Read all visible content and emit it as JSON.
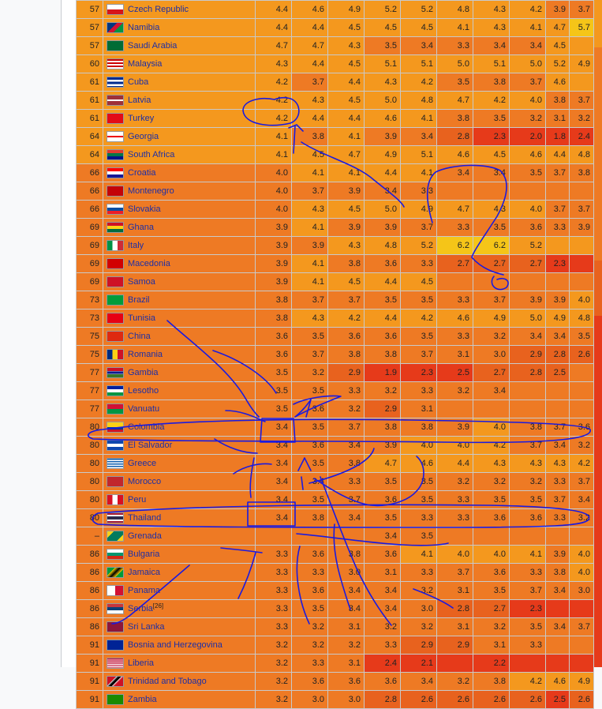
{
  "colors": {
    "c0": "#f4981e",
    "c1": "#ee7a24",
    "c2": "#e8621e",
    "c3": "#e63a1a",
    "c4": "#f5c518"
  },
  "rows": [
    {
      "rank": "57",
      "country": "Czech Republic",
      "flag": "flag-czech-republic",
      "bg": "c0",
      "values": [
        "4.4",
        "4.6",
        "4.9",
        "5.2",
        "5.2",
        "4.8",
        "4.3",
        "4.2",
        "3.9",
        "3.7"
      ],
      "shades": [
        "c0",
        "c0",
        "c0",
        "c0",
        "c0",
        "c0",
        "c0",
        "c0",
        "c1",
        "c1"
      ]
    },
    {
      "rank": "57",
      "country": "Namibia",
      "flag": "flag-namibia",
      "bg": "c0",
      "values": [
        "4.4",
        "4.4",
        "4.5",
        "4.5",
        "4.5",
        "4.1",
        "4.3",
        "4.1",
        "4.7",
        "5.7"
      ],
      "shades": [
        "c0",
        "c0",
        "c0",
        "c0",
        "c0",
        "c0",
        "c0",
        "c0",
        "c0",
        "c4"
      ]
    },
    {
      "rank": "57",
      "country": "Saudi Arabia",
      "flag": "flag-saudi-arabia",
      "bg": "c0",
      "values": [
        "4.7",
        "4.7",
        "4.3",
        "3.5",
        "3.4",
        "3.3",
        "3.4",
        "3.4",
        "4.5",
        ""
      ],
      "shades": [
        "c0",
        "c0",
        "c0",
        "c1",
        "c1",
        "c1",
        "c1",
        "c1",
        "c0",
        "c0"
      ]
    },
    {
      "rank": "60",
      "country": "Malaysia",
      "flag": "flag-malaysia",
      "bg": "c0",
      "values": [
        "4.3",
        "4.4",
        "4.5",
        "5.1",
        "5.1",
        "5.0",
        "5.1",
        "5.0",
        "5.2",
        "4.9"
      ],
      "shades": [
        "c0",
        "c0",
        "c0",
        "c0",
        "c0",
        "c0",
        "c0",
        "c0",
        "c0",
        "c0"
      ]
    },
    {
      "rank": "61",
      "country": "Cuba",
      "flag": "flag-cuba",
      "bg": "c0",
      "values": [
        "4.2",
        "3.7",
        "4.4",
        "4.3",
        "4.2",
        "3.5",
        "3.8",
        "3.7",
        "4.6",
        ""
      ],
      "shades": [
        "c0",
        "c1",
        "c0",
        "c0",
        "c0",
        "c1",
        "c1",
        "c1",
        "c0",
        "c0"
      ]
    },
    {
      "rank": "61",
      "country": "Latvia",
      "flag": "flag-latvia",
      "bg": "c0",
      "values": [
        "4.2",
        "4.3",
        "4.5",
        "5.0",
        "4.8",
        "4.7",
        "4.2",
        "4.0",
        "3.8",
        "3.7"
      ],
      "shades": [
        "c0",
        "c0",
        "c0",
        "c0",
        "c0",
        "c0",
        "c0",
        "c0",
        "c1",
        "c1"
      ]
    },
    {
      "rank": "61",
      "country": "Turkey",
      "flag": "flag-turkey",
      "bg": "c0",
      "values": [
        "4.2",
        "4.4",
        "4.4",
        "4.6",
        "4.1",
        "3.8",
        "3.5",
        "3.2",
        "3.1",
        "3.2"
      ],
      "shades": [
        "c0",
        "c0",
        "c0",
        "c0",
        "c0",
        "c1",
        "c1",
        "c1",
        "c1",
        "c1"
      ]
    },
    {
      "rank": "64",
      "country": "Georgia",
      "flag": "flag-georgia",
      "bg": "c0",
      "values": [
        "4.1",
        "3.8",
        "4.1",
        "3.9",
        "3.4",
        "2.8",
        "2.3",
        "2.0",
        "1.8",
        "2.4"
      ],
      "shades": [
        "c0",
        "c1",
        "c0",
        "c1",
        "c1",
        "c2",
        "c3",
        "c3",
        "c3",
        "c3"
      ]
    },
    {
      "rank": "64",
      "country": "South Africa",
      "flag": "flag-south-africa",
      "bg": "c0",
      "values": [
        "4.1",
        "4.5",
        "4.7",
        "4.9",
        "5.1",
        "4.6",
        "4.5",
        "4.6",
        "4.4",
        "4.8"
      ],
      "shades": [
        "c0",
        "c0",
        "c0",
        "c0",
        "c0",
        "c0",
        "c0",
        "c0",
        "c0",
        "c0"
      ]
    },
    {
      "rank": "66",
      "country": "Croatia",
      "flag": "flag-croatia",
      "bg": "c1",
      "values": [
        "4.0",
        "4.1",
        "4.1",
        "4.4",
        "4.1",
        "3.4",
        "3.4",
        "3.5",
        "3.7",
        "3.8"
      ],
      "shades": [
        "c1",
        "c0",
        "c0",
        "c0",
        "c0",
        "c1",
        "c1",
        "c1",
        "c1",
        "c1"
      ]
    },
    {
      "rank": "66",
      "country": "Montenegro",
      "flag": "flag-montenegro",
      "bg": "c1",
      "values": [
        "4.0",
        "3.7",
        "3.9",
        "3.4",
        "3.3",
        "",
        "",
        "",
        "",
        ""
      ],
      "shades": [
        "c1",
        "c1",
        "c1",
        "c1",
        "c1",
        "c1",
        "c1",
        "c1",
        "c1",
        "c1"
      ]
    },
    {
      "rank": "66",
      "country": "Slovakia",
      "flag": "flag-slovakia",
      "bg": "c1",
      "values": [
        "4.0",
        "4.3",
        "4.5",
        "5.0",
        "4.9",
        "4.7",
        "4.3",
        "4.0",
        "3.7",
        "3.7"
      ],
      "shades": [
        "c1",
        "c0",
        "c0",
        "c0",
        "c0",
        "c0",
        "c0",
        "c0",
        "c1",
        "c1"
      ]
    },
    {
      "rank": "69",
      "country": "Ghana",
      "flag": "flag-ghana",
      "bg": "c1",
      "values": [
        "3.9",
        "4.1",
        "3.9",
        "3.9",
        "3.7",
        "3.3",
        "3.5",
        "3.6",
        "3.3",
        "3.9"
      ],
      "shades": [
        "c1",
        "c0",
        "c1",
        "c1",
        "c1",
        "c1",
        "c1",
        "c1",
        "c1",
        "c1"
      ]
    },
    {
      "rank": "69",
      "country": "Italy",
      "flag": "flag-italy",
      "bg": "c1",
      "values": [
        "3.9",
        "3.9",
        "4.3",
        "4.8",
        "5.2",
        "6.2",
        "6.2",
        "5.2",
        "",
        ""
      ],
      "shades": [
        "c1",
        "c1",
        "c0",
        "c0",
        "c0",
        "c4",
        "c4",
        "c0",
        "c0",
        "c0"
      ]
    },
    {
      "rank": "69",
      "country": "Macedonia",
      "flag": "flag-macedonia",
      "bg": "c1",
      "values": [
        "3.9",
        "4.1",
        "3.8",
        "3.6",
        "3.3",
        "2.7",
        "2.7",
        "2.7",
        "2.3",
        ""
      ],
      "shades": [
        "c1",
        "c0",
        "c1",
        "c1",
        "c1",
        "c2",
        "c2",
        "c2",
        "c3",
        "c3"
      ]
    },
    {
      "rank": "69",
      "country": "Samoa",
      "flag": "flag-samoa",
      "bg": "c1",
      "values": [
        "3.9",
        "4.1",
        "4.5",
        "4.4",
        "4.5",
        "",
        "",
        "",
        "",
        ""
      ],
      "shades": [
        "c1",
        "c0",
        "c0",
        "c0",
        "c0",
        "c1",
        "c1",
        "c1",
        "c1",
        "c1"
      ]
    },
    {
      "rank": "73",
      "country": "Brazil",
      "flag": "flag-brazil",
      "bg": "c1",
      "values": [
        "3.8",
        "3.7",
        "3.7",
        "3.5",
        "3.5",
        "3.3",
        "3.7",
        "3.9",
        "3.9",
        "4.0"
      ],
      "shades": [
        "c1",
        "c1",
        "c1",
        "c1",
        "c1",
        "c1",
        "c1",
        "c1",
        "c1",
        "c0"
      ]
    },
    {
      "rank": "73",
      "country": "Tunisia",
      "flag": "flag-tunisia",
      "bg": "c1",
      "values": [
        "3.8",
        "4.3",
        "4.2",
        "4.4",
        "4.2",
        "4.6",
        "4.9",
        "5.0",
        "4.9",
        "4.8"
      ],
      "shades": [
        "c1",
        "c0",
        "c0",
        "c0",
        "c0",
        "c0",
        "c0",
        "c0",
        "c0",
        "c0"
      ]
    },
    {
      "rank": "75",
      "country": "China",
      "flag": "flag-china",
      "bg": "c1",
      "values": [
        "3.6",
        "3.5",
        "3.6",
        "3.6",
        "3.5",
        "3.3",
        "3.2",
        "3.4",
        "3.4",
        "3.5"
      ],
      "shades": [
        "c1",
        "c1",
        "c1",
        "c1",
        "c1",
        "c1",
        "c1",
        "c1",
        "c1",
        "c1"
      ]
    },
    {
      "rank": "75",
      "country": "Romania",
      "flag": "flag-romania",
      "bg": "c1",
      "values": [
        "3.6",
        "3.7",
        "3.8",
        "3.8",
        "3.7",
        "3.1",
        "3.0",
        "2.9",
        "2.8",
        "2.6"
      ],
      "shades": [
        "c1",
        "c1",
        "c1",
        "c1",
        "c1",
        "c1",
        "c1",
        "c2",
        "c2",
        "c2"
      ]
    },
    {
      "rank": "77",
      "country": "Gambia",
      "flag": "flag-gambia",
      "bg": "c1",
      "values": [
        "3.5",
        "3.2",
        "2.9",
        "1.9",
        "2.3",
        "2.5",
        "2.7",
        "2.8",
        "2.5",
        ""
      ],
      "shades": [
        "c1",
        "c1",
        "c2",
        "c3",
        "c3",
        "c3",
        "c2",
        "c2",
        "c2",
        "c1"
      ]
    },
    {
      "rank": "77",
      "country": "Lesotho",
      "flag": "flag-lesotho",
      "bg": "c1",
      "values": [
        "3.5",
        "3.5",
        "3.3",
        "3.2",
        "3.3",
        "3.2",
        "3.4",
        "",
        "",
        ""
      ],
      "shades": [
        "c1",
        "c1",
        "c1",
        "c1",
        "c1",
        "c1",
        "c1",
        "c1",
        "c1",
        "c1"
      ]
    },
    {
      "rank": "77",
      "country": "Vanuatu",
      "flag": "flag-vanuatu",
      "bg": "c1",
      "values": [
        "3.5",
        "3.6",
        "3.2",
        "2.9",
        "3.1",
        "",
        "",
        "",
        "",
        ""
      ],
      "shades": [
        "c1",
        "c1",
        "c1",
        "c2",
        "c1",
        "c1",
        "c1",
        "c1",
        "c1",
        "c1"
      ]
    },
    {
      "rank": "80",
      "country": "Colombia",
      "flag": "flag-colombia",
      "bg": "c1",
      "values": [
        "3.4",
        "3.5",
        "3.7",
        "3.8",
        "3.8",
        "3.9",
        "4.0",
        "3.8",
        "3.7",
        "3.6"
      ],
      "shades": [
        "c1",
        "c1",
        "c1",
        "c1",
        "c1",
        "c1",
        "c0",
        "c1",
        "c1",
        "c1"
      ]
    },
    {
      "rank": "80",
      "country": "El Salvador",
      "flag": "flag-el-salvador",
      "bg": "c1",
      "values": [
        "3.4",
        "3.6",
        "3.4",
        "3.9",
        "4.0",
        "4.0",
        "4.2",
        "3.7",
        "3.4",
        "3.2"
      ],
      "shades": [
        "c1",
        "c1",
        "c1",
        "c1",
        "c0",
        "c0",
        "c0",
        "c1",
        "c1",
        "c1"
      ]
    },
    {
      "rank": "80",
      "country": "Greece",
      "flag": "flag-greece",
      "bg": "c1",
      "values": [
        "3.4",
        "3.5",
        "3.8",
        "4.7",
        "4.6",
        "4.4",
        "4.3",
        "4.3",
        "4.3",
        "4.2"
      ],
      "shades": [
        "c1",
        "c1",
        "c1",
        "c0",
        "c0",
        "c0",
        "c0",
        "c0",
        "c0",
        "c0"
      ]
    },
    {
      "rank": "80",
      "country": "Morocco",
      "flag": "flag-morocco",
      "bg": "c1",
      "values": [
        "3.4",
        "3.4",
        "3.3",
        "3.5",
        "3.5",
        "3.2",
        "3.2",
        "3.2",
        "3.3",
        "3.7"
      ],
      "shades": [
        "c1",
        "c1",
        "c1",
        "c1",
        "c1",
        "c1",
        "c1",
        "c1",
        "c1",
        "c1"
      ]
    },
    {
      "rank": "80",
      "country": "Peru",
      "flag": "flag-peru",
      "bg": "c1",
      "values": [
        "3.4",
        "3.5",
        "3.7",
        "3.6",
        "3.5",
        "3.3",
        "3.5",
        "3.5",
        "3.7",
        "3.4"
      ],
      "shades": [
        "c1",
        "c1",
        "c1",
        "c1",
        "c1",
        "c1",
        "c1",
        "c1",
        "c1",
        "c1"
      ]
    },
    {
      "rank": "80",
      "country": "Thailand",
      "flag": "flag-thailand",
      "bg": "c1",
      "values": [
        "3.4",
        "3.8",
        "3.4",
        "3.5",
        "3.3",
        "3.3",
        "3.6",
        "3.6",
        "3.3",
        "3.2"
      ],
      "shades": [
        "c1",
        "c1",
        "c1",
        "c1",
        "c1",
        "c1",
        "c1",
        "c1",
        "c1",
        "c1"
      ]
    },
    {
      "rank": "–",
      "country": "Grenada",
      "flag": "flag-grenada",
      "bg": "c1",
      "values": [
        "",
        "",
        "",
        "3.4",
        "3.5",
        "",
        "",
        "",
        "",
        ""
      ],
      "shades": [
        "c1",
        "c1",
        "c1",
        "c1",
        "c1",
        "c1",
        "c1",
        "c1",
        "c1",
        "c1"
      ]
    },
    {
      "rank": "86",
      "country": "Bulgaria",
      "flag": "flag-bulgaria",
      "bg": "c1",
      "values": [
        "3.3",
        "3.6",
        "3.8",
        "3.6",
        "4.1",
        "4.0",
        "4.0",
        "4.1",
        "3.9",
        "4.0"
      ],
      "shades": [
        "c1",
        "c1",
        "c1",
        "c1",
        "c0",
        "c0",
        "c0",
        "c0",
        "c1",
        "c0"
      ]
    },
    {
      "rank": "86",
      "country": "Jamaica",
      "flag": "flag-jamaica",
      "bg": "c1",
      "values": [
        "3.3",
        "3.3",
        "3.0",
        "3.1",
        "3.3",
        "3.7",
        "3.6",
        "3.3",
        "3.8",
        "4.0"
      ],
      "shades": [
        "c1",
        "c1",
        "c1",
        "c1",
        "c1",
        "c1",
        "c1",
        "c1",
        "c1",
        "c0"
      ]
    },
    {
      "rank": "86",
      "country": "Panama",
      "flag": "flag-panama",
      "bg": "c1",
      "values": [
        "3.3",
        "3.6",
        "3.4",
        "3.4",
        "3.2",
        "3.1",
        "3.5",
        "3.7",
        "3.4",
        "3.0"
      ],
      "shades": [
        "c1",
        "c1",
        "c1",
        "c1",
        "c1",
        "c1",
        "c1",
        "c1",
        "c1",
        "c1"
      ]
    },
    {
      "rank": "86",
      "country": "Serbia",
      "sup": "[26]",
      "flag": "flag-serbia",
      "bg": "c1",
      "values": [
        "3.3",
        "3.5",
        "3.4",
        "3.4",
        "3.0",
        "2.8",
        "2.7",
        "2.3",
        "",
        ""
      ],
      "shades": [
        "c1",
        "c1",
        "c1",
        "c1",
        "c1",
        "c2",
        "c2",
        "c3",
        "c3",
        "c3"
      ]
    },
    {
      "rank": "86",
      "country": "Sri Lanka",
      "flag": "flag-sri-lanka",
      "bg": "c1",
      "values": [
        "3.3",
        "3.2",
        "3.1",
        "3.2",
        "3.2",
        "3.1",
        "3.2",
        "3.5",
        "3.4",
        "3.7"
      ],
      "shades": [
        "c1",
        "c1",
        "c1",
        "c1",
        "c1",
        "c1",
        "c1",
        "c1",
        "c1",
        "c1"
      ]
    },
    {
      "rank": "91",
      "country": "Bosnia and Herzegovina",
      "flag": "flag-bosnia-and-herzegovina",
      "bg": "c1",
      "values": [
        "3.2",
        "3.2",
        "3.2",
        "3.3",
        "2.9",
        "2.9",
        "3.1",
        "3.3",
        "",
        ""
      ],
      "shades": [
        "c1",
        "c1",
        "c1",
        "c1",
        "c2",
        "c2",
        "c1",
        "c1",
        "c1",
        "c1"
      ]
    },
    {
      "rank": "91",
      "country": "Liberia",
      "flag": "flag-liberia",
      "bg": "c1",
      "values": [
        "3.2",
        "3.3",
        "3.1",
        "2.4",
        "2.1",
        "",
        "2.2",
        "",
        "",
        ""
      ],
      "shades": [
        "c1",
        "c1",
        "c1",
        "c3",
        "c3",
        "c3",
        "c3",
        "c3",
        "c3",
        "c3"
      ]
    },
    {
      "rank": "91",
      "country": "Trinidad and Tobago",
      "flag": "flag-trinidad-and-tobago",
      "bg": "c1",
      "values": [
        "3.2",
        "3.6",
        "3.6",
        "3.6",
        "3.4",
        "3.2",
        "3.8",
        "4.2",
        "4.6",
        "4.9"
      ],
      "shades": [
        "c1",
        "c1",
        "c1",
        "c1",
        "c1",
        "c1",
        "c1",
        "c0",
        "c0",
        "c0"
      ]
    },
    {
      "rank": "91",
      "country": "Zambia",
      "flag": "flag-zambia",
      "bg": "c1",
      "values": [
        "3.2",
        "3.0",
        "3.0",
        "2.8",
        "2.6",
        "2.6",
        "2.6",
        "2.6",
        "2.5",
        "2.6"
      ],
      "shades": [
        "c1",
        "c1",
        "c1",
        "c2",
        "c2",
        "c2",
        "c2",
        "c2",
        "c3",
        "c2"
      ]
    }
  ]
}
